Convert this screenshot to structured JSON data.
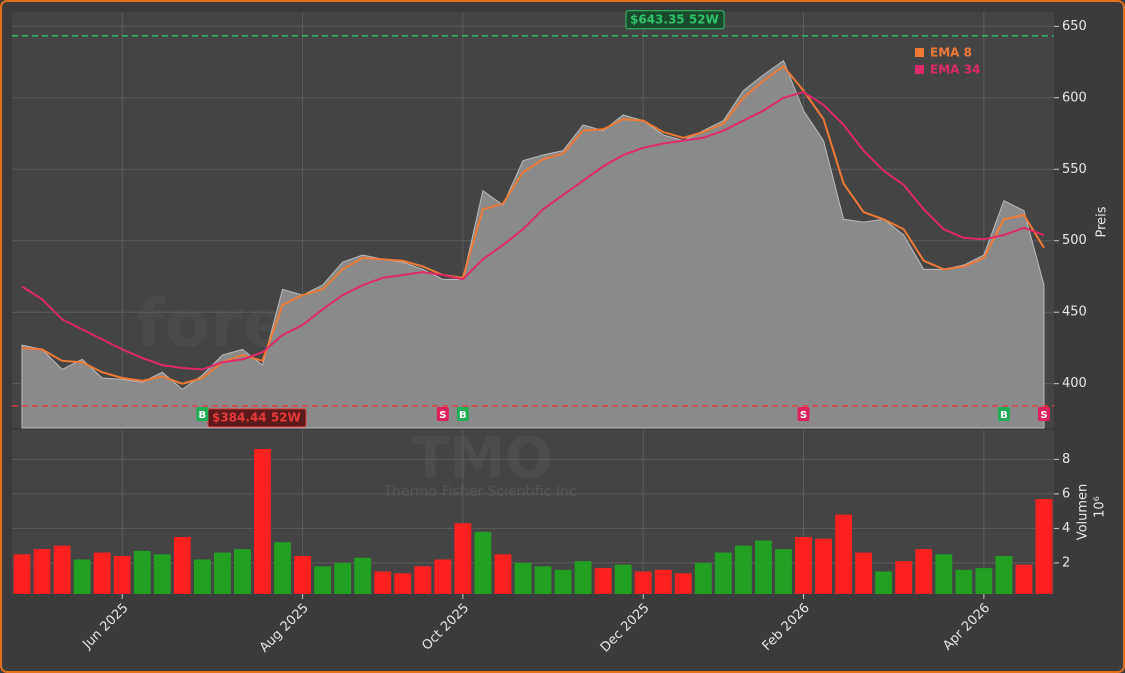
{
  "chart_data": [
    {
      "type": "price",
      "watermark": "forexsignale.trade",
      "ticker": "TMO",
      "company": "Thermo Fisher Scientific Inc",
      "y_label": "Preis",
      "values": [
        427,
        424,
        410,
        417,
        404,
        403,
        401,
        408,
        396,
        406,
        420,
        424,
        413,
        466,
        462,
        469,
        485,
        490,
        487,
        485,
        480,
        473,
        473,
        535,
        525,
        556,
        560,
        563,
        581,
        577,
        588,
        584,
        574,
        570,
        577,
        584,
        605,
        616,
        626,
        591,
        570,
        515,
        513,
        515,
        504,
        480,
        480,
        483,
        490,
        528,
        521,
        469
      ],
      "color": "#8a8a8a",
      "series": [
        {
          "name": "EMA 8",
          "color": "#f07a35",
          "values": [
            425,
            424,
            416,
            415,
            408,
            404,
            402,
            405,
            400,
            404,
            415,
            420,
            416,
            455,
            462,
            466,
            480,
            488,
            487,
            486,
            482,
            476,
            474,
            522,
            526,
            548,
            557,
            561,
            577,
            578,
            585,
            584,
            576,
            572,
            576,
            582,
            600,
            612,
            622,
            605,
            585,
            540,
            520,
            515,
            508,
            486,
            480,
            482,
            488,
            515,
            518,
            495
          ]
        },
        {
          "name": "EMA 34",
          "color": "#e0286a",
          "values": [
            468,
            459,
            445,
            438,
            431,
            424,
            418,
            413,
            411,
            410,
            415,
            417,
            422,
            434,
            441,
            452,
            462,
            469,
            474,
            476,
            478,
            476,
            473,
            487,
            497,
            508,
            522,
            532,
            542,
            552,
            560,
            565,
            568,
            570,
            572,
            577,
            584,
            591,
            600,
            604,
            595,
            581,
            563,
            549,
            539,
            522,
            508,
            502,
            501,
            504,
            509,
            504
          ]
        }
      ],
      "high": {
        "value": 643.35,
        "label": "$643.35 52W",
        "color": "#2ec46a"
      },
      "low": {
        "value": 384.44,
        "label": "$384.44 52W",
        "color": "#e83a3a"
      },
      "signals": [
        null,
        null,
        null,
        null,
        null,
        null,
        null,
        null,
        null,
        "B",
        null,
        null,
        null,
        null,
        null,
        null,
        null,
        null,
        null,
        null,
        null,
        "S",
        "B",
        null,
        null,
        null,
        null,
        null,
        null,
        null,
        null,
        null,
        null,
        null,
        null,
        null,
        null,
        null,
        null,
        "S",
        null,
        null,
        null,
        null,
        null,
        null,
        null,
        null,
        null,
        "B",
        null,
        "S"
      ],
      "ylim": [
        369,
        660
      ],
      "yticks": [
        400,
        450,
        500,
        550,
        600,
        650
      ],
      "grid": true
    },
    {
      "type": "volume",
      "y_label": "Volumen",
      "multiplier": "10⁶",
      "categories": [
        null,
        null,
        null,
        null,
        null,
        "Jun 2025",
        null,
        null,
        null,
        null,
        null,
        null,
        null,
        null,
        "Aug 2025",
        null,
        null,
        null,
        null,
        null,
        null,
        null,
        "Oct 2025",
        null,
        null,
        null,
        null,
        null,
        null,
        null,
        null,
        "Dec 2025",
        null,
        null,
        null,
        null,
        null,
        null,
        null,
        "Feb 2026",
        null,
        null,
        null,
        null,
        null,
        null,
        null,
        null,
        "Apr 2026",
        null,
        null,
        null
      ],
      "values": [
        2.5,
        2.8,
        3.0,
        2.2,
        2.6,
        2.4,
        2.7,
        2.5,
        3.5,
        2.2,
        2.6,
        2.8,
        8.6,
        3.2,
        2.4,
        1.8,
        2.0,
        2.3,
        1.5,
        1.4,
        1.8,
        2.2,
        4.3,
        3.8,
        2.5,
        2.0,
        1.8,
        1.6,
        2.1,
        1.7,
        1.9,
        1.5,
        1.6,
        1.4,
        2.0,
        2.6,
        3.0,
        3.3,
        2.8,
        3.5,
        3.4,
        4.8,
        2.6,
        1.5,
        2.1,
        2.8,
        2.5,
        1.6,
        1.7,
        2.4,
        1.9,
        5.7
      ],
      "colors": [
        "#ff2020",
        "#ff2020",
        "#ff2020",
        "#22a022",
        "#ff2020",
        "#ff2020",
        "#22a022",
        "#22a022",
        "#ff2020",
        "#22a022",
        "#22a022",
        "#22a022",
        "#ff2020",
        "#22a022",
        "#ff2020",
        "#22a022",
        "#22a022",
        "#22a022",
        "#ff2020",
        "#ff2020",
        "#ff2020",
        "#ff2020",
        "#ff2020",
        "#22a022",
        "#ff2020",
        "#22a022",
        "#22a022",
        "#22a022",
        "#22a022",
        "#ff2020",
        "#22a022",
        "#ff2020",
        "#ff2020",
        "#ff2020",
        "#22a022",
        "#22a022",
        "#22a022",
        "#22a022",
        "#22a022",
        "#ff2020",
        "#ff2020",
        "#ff2020",
        "#ff2020",
        "#22a022",
        "#ff2020",
        "#ff2020",
        "#22a022",
        "#22a022",
        "#22a022",
        "#22a022",
        "#ff2020",
        "#ff2020"
      ],
      "ylim": [
        0.2,
        9.7
      ],
      "yticks": [
        2,
        4,
        6,
        8
      ],
      "grid": true
    }
  ]
}
